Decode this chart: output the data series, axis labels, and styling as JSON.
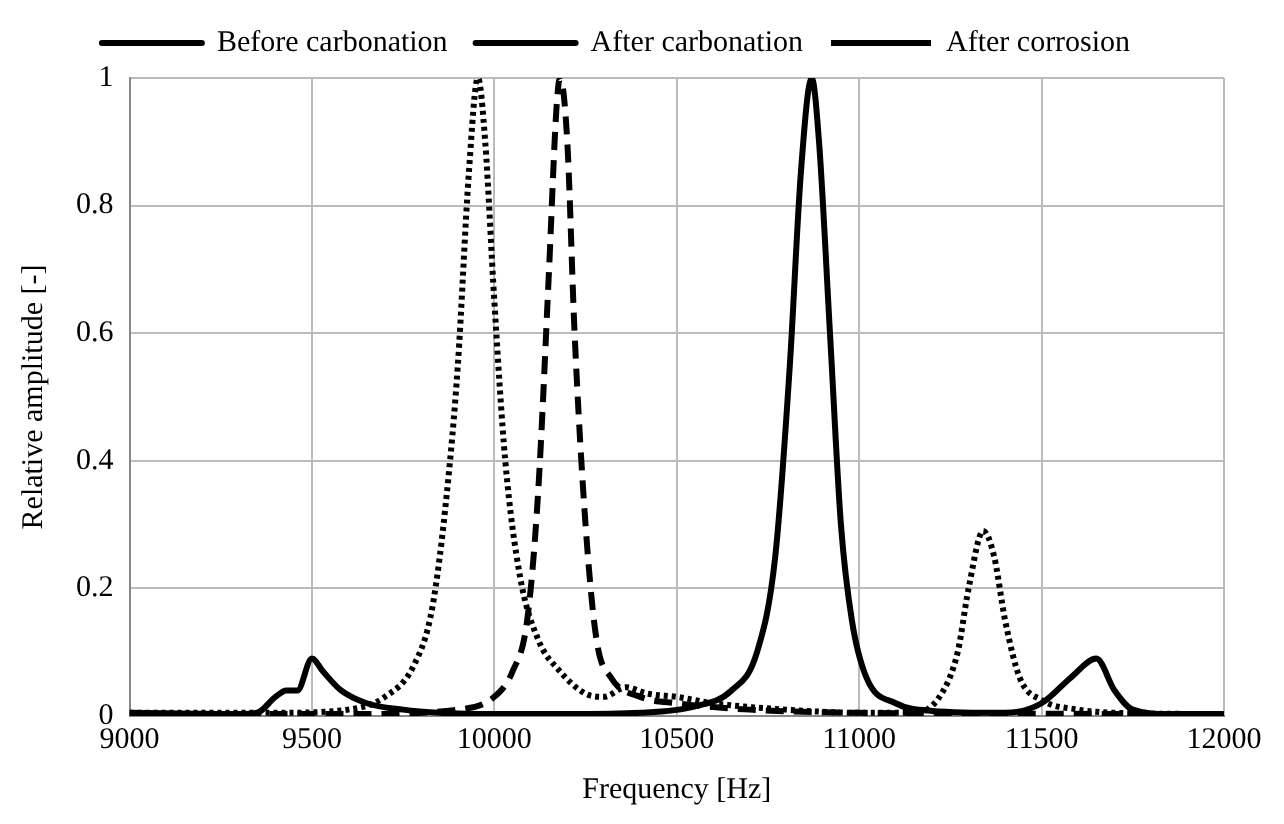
{
  "chart_data": {
    "type": "line",
    "xlabel": "Frequency [Hz]",
    "ylabel": "Relative amplitude [-]",
    "xlim": [
      9000,
      12000
    ],
    "xticks": [
      9000,
      9500,
      10000,
      10500,
      11000,
      11500,
      12000
    ],
    "ylim": [
      0,
      1
    ],
    "yticks": [
      0,
      0.2,
      0.4,
      0.6,
      0.8,
      1
    ],
    "grid": true,
    "legend": "top",
    "marker": "none",
    "series": [
      {
        "name": "Before carbonation",
        "color": "#000000",
        "line_style": "solid",
        "x": [
          9000,
          9300,
          9350,
          9400,
          9430,
          9460,
          9500,
          9530,
          9580,
          9650,
          9750,
          9850,
          10000,
          10200,
          10400,
          10550,
          10650,
          10720,
          10770,
          10810,
          10840,
          10870,
          10890,
          10920,
          10950,
          10980,
          11020,
          11100,
          11200,
          11400,
          11500,
          11580,
          11650,
          11700,
          11750,
          11850,
          12000
        ],
        "values": [
          0.005,
          0.003,
          0.005,
          0.03,
          0.04,
          0.04,
          0.09,
          0.07,
          0.04,
          0.02,
          0.01,
          0.005,
          0.003,
          0.003,
          0.005,
          0.015,
          0.04,
          0.1,
          0.25,
          0.55,
          0.85,
          1.0,
          0.9,
          0.6,
          0.3,
          0.15,
          0.06,
          0.02,
          0.008,
          0.005,
          0.02,
          0.06,
          0.09,
          0.04,
          0.01,
          0.003,
          0.003
        ]
      },
      {
        "name": "After carbonation",
        "color": "#000000",
        "line_style": "dashed",
        "x": [
          9000,
          9600,
          9900,
          10000,
          10050,
          10090,
          10120,
          10150,
          10170,
          10180,
          10200,
          10220,
          10250,
          10280,
          10320,
          10400,
          10500,
          10700,
          11000,
          12000
        ],
        "values": [
          0.003,
          0.003,
          0.01,
          0.03,
          0.07,
          0.15,
          0.35,
          0.7,
          0.95,
          1.0,
          0.9,
          0.6,
          0.3,
          0.12,
          0.06,
          0.03,
          0.02,
          0.01,
          0.005,
          0.003
        ]
      },
      {
        "name": "After corrosion",
        "color": "#000000",
        "line_style": "dotted",
        "x": [
          9000,
          9400,
          9600,
          9700,
          9780,
          9830,
          9870,
          9900,
          9930,
          9955,
          9975,
          10000,
          10030,
          10070,
          10120,
          10180,
          10250,
          10300,
          10360,
          10420,
          10500,
          10600,
          10800,
          11000,
          11150,
          11220,
          11270,
          11300,
          11340,
          11370,
          11400,
          11440,
          11500,
          11600,
          11700,
          12000
        ],
        "values": [
          0.005,
          0.005,
          0.01,
          0.03,
          0.08,
          0.17,
          0.35,
          0.55,
          0.85,
          1.0,
          0.9,
          0.65,
          0.4,
          0.22,
          0.12,
          0.07,
          0.035,
          0.03,
          0.045,
          0.035,
          0.03,
          0.02,
          0.01,
          0.005,
          0.005,
          0.03,
          0.1,
          0.2,
          0.29,
          0.25,
          0.15,
          0.06,
          0.025,
          0.01,
          0.005,
          0.003
        ]
      }
    ]
  }
}
